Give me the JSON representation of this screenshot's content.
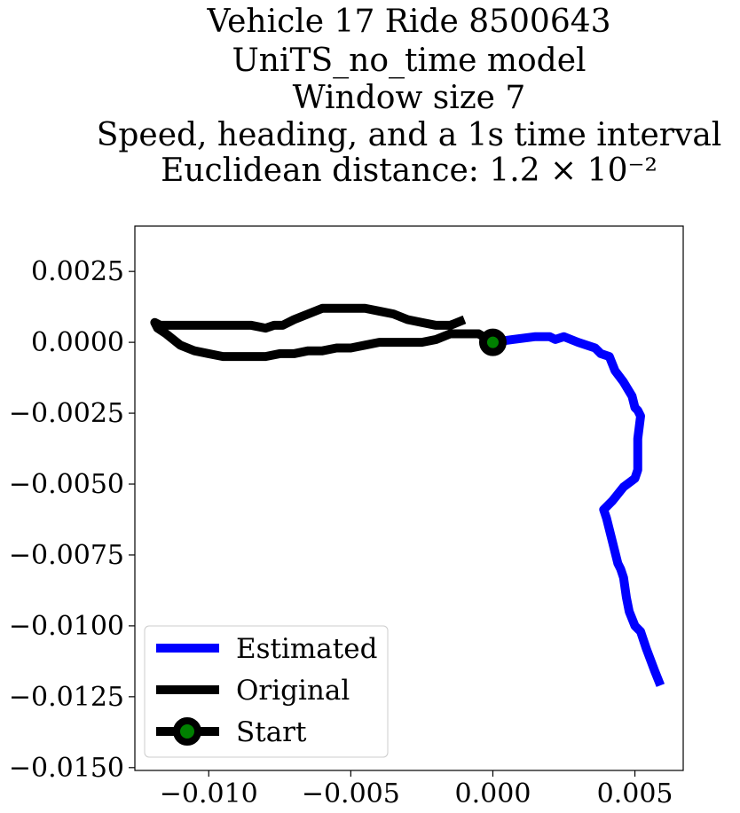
{
  "chart_data": {
    "type": "line",
    "title": [
      "Vehicle 17 Ride 8500643",
      "UniTS_no_time model",
      "Window size 7",
      "Speed, heading, and a 1s time interval",
      "Euclidean distance: 1.2 × 10⁻²"
    ],
    "xlabel": "",
    "ylabel": "",
    "xlim": [
      -0.0126,
      0.0067
    ],
    "ylim": [
      -0.0151,
      0.0041
    ],
    "x_ticks": [
      {
        "value": -0.01,
        "label": "−0.010"
      },
      {
        "value": -0.005,
        "label": "−0.005"
      },
      {
        "value": 0.0,
        "label": "0.000"
      },
      {
        "value": 0.005,
        "label": "0.005"
      }
    ],
    "y_ticks": [
      {
        "value": 0.0025,
        "label": "0.0025"
      },
      {
        "value": 0.0,
        "label": "0.0000"
      },
      {
        "value": -0.0025,
        "label": "−0.0025"
      },
      {
        "value": -0.005,
        "label": "−0.0050"
      },
      {
        "value": -0.0075,
        "label": "−0.0075"
      },
      {
        "value": -0.01,
        "label": "−0.0100"
      },
      {
        "value": -0.0125,
        "label": "−0.0125"
      },
      {
        "value": -0.015,
        "label": "−0.0150"
      }
    ],
    "grid": false,
    "legend_position": "lower-left",
    "series": [
      {
        "name": "Estimated",
        "color": "#0000ff",
        "x": [
          0.0,
          0.0007,
          0.0015,
          0.002,
          0.0022,
          0.0025,
          0.003,
          0.0036,
          0.0038,
          0.0041,
          0.0043,
          0.0046,
          0.0049,
          0.005,
          0.0051,
          0.0052,
          0.0051,
          0.0051,
          0.005,
          0.0046,
          0.0042,
          0.0039,
          0.004,
          0.0042,
          0.0044,
          0.0045,
          0.0046,
          0.0047,
          0.0048,
          0.005,
          0.0052,
          0.0054,
          0.0057,
          0.0059
        ],
        "y": [
          0.0,
          0.0001,
          0.0002,
          0.0002,
          0.0001,
          0.0002,
          0.0,
          -0.0002,
          -0.0004,
          -0.0005,
          -0.001,
          -0.0014,
          -0.0019,
          -0.0023,
          -0.0024,
          -0.0026,
          -0.0034,
          -0.0045,
          -0.0048,
          -0.0051,
          -0.0056,
          -0.0059,
          -0.0062,
          -0.007,
          -0.0078,
          -0.008,
          -0.0083,
          -0.009,
          -0.0095,
          -0.01,
          -0.0102,
          -0.0108,
          -0.0116,
          -0.0121
        ]
      },
      {
        "name": "Original",
        "color": "#000000",
        "x": [
          0.0,
          -0.0005,
          -0.001,
          -0.0015,
          -0.002,
          -0.0025,
          -0.003,
          -0.0035,
          -0.004,
          -0.0045,
          -0.005,
          -0.0055,
          -0.006,
          -0.0065,
          -0.007,
          -0.0075,
          -0.008,
          -0.0085,
          -0.009,
          -0.0095,
          -0.01,
          -0.0105,
          -0.011,
          -0.0115,
          -0.0118,
          -0.0119,
          -0.0117,
          -0.0112,
          -0.0105,
          -0.0098,
          -0.009,
          -0.0085,
          -0.008,
          -0.0077,
          -0.0074,
          -0.007,
          -0.0065,
          -0.006,
          -0.0055,
          -0.005,
          -0.0045,
          -0.004,
          -0.0035,
          -0.003,
          -0.0025,
          -0.002,
          -0.0015,
          -0.001
        ],
        "y": [
          0.0,
          0.0003,
          0.0003,
          0.0003,
          0.0001,
          0.0,
          0.0,
          0.0,
          0.0,
          -0.0001,
          -0.0002,
          -0.0002,
          -0.0003,
          -0.0003,
          -0.0004,
          -0.0004,
          -0.0005,
          -0.0005,
          -0.0005,
          -0.0005,
          -0.0004,
          -0.0003,
          -0.0001,
          0.0003,
          0.0005,
          0.0007,
          0.0006,
          0.0006,
          0.0006,
          0.0006,
          0.0006,
          0.0006,
          0.0005,
          0.0006,
          0.0006,
          0.0008,
          0.001,
          0.0012,
          0.0012,
          0.0012,
          0.0012,
          0.0011,
          0.001,
          0.0008,
          0.0007,
          0.0006,
          0.0006,
          0.0008
        ]
      }
    ],
    "start_marker": {
      "name": "Start",
      "x": 0.0,
      "y": 0.0,
      "color": "#008000",
      "edge_color": "#000000"
    },
    "legend": [
      {
        "label": "Estimated",
        "color": "#0000ff",
        "kind": "line"
      },
      {
        "label": "Original",
        "color": "#000000",
        "kind": "line"
      },
      {
        "label": "Start",
        "color": "#000000",
        "marker_color": "#008000",
        "kind": "marker-line"
      }
    ]
  }
}
